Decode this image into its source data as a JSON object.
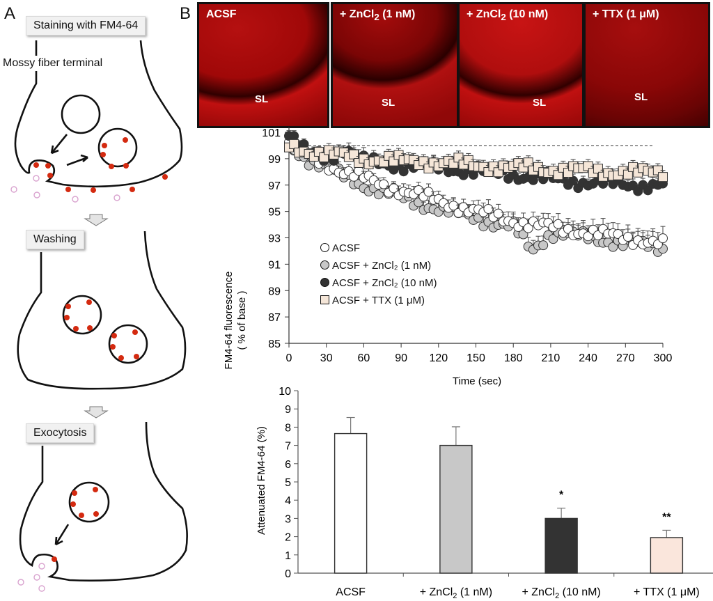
{
  "panel_a": {
    "letter": "A",
    "stages": [
      {
        "label": "Staining with FM4-64"
      },
      {
        "label": "Washing"
      },
      {
        "label": "Exocytosis"
      }
    ],
    "terminal_label": "Mossy fiber terminal",
    "colors": {
      "dye": "#d42a10",
      "released_dye": "#d9a3cf"
    }
  },
  "panel_b": {
    "letter": "B",
    "micrographs": [
      {
        "title": "+ ACSF",
        "title_main": "ACSF",
        "title_sub": "",
        "title_tail": "",
        "region_label": "SL"
      },
      {
        "title_main": "+ ZnCl",
        "title_sub": "2",
        "title_tail": " (1 nM)",
        "region_label": "SL"
      },
      {
        "title_main": "+ ZnCl",
        "title_sub": "2",
        "title_tail": " (10 nM)",
        "region_label": "SL"
      },
      {
        "title_main": "+ TTX (1 μM)",
        "title_sub": "",
        "title_tail": "",
        "region_label": "SL"
      }
    ]
  },
  "chart_data": [
    {
      "type": "scatter",
      "title": "",
      "xlabel": "Time (sec)",
      "ylabel": "FM4-64 fluorescence",
      "ylabel2": "( % of base )",
      "xlim": [
        0,
        300
      ],
      "ylim": [
        85,
        101
      ],
      "xticks": [
        0,
        30,
        60,
        90,
        120,
        150,
        180,
        210,
        240,
        270,
        300
      ],
      "yticks": [
        85,
        87,
        89,
        91,
        93,
        95,
        97,
        99,
        101
      ],
      "baseline": 100,
      "legend_position": "lower-left",
      "series": [
        {
          "name": "ACSF",
          "marker": "circle",
          "color": "#ffffff",
          "x": [
            0,
            15,
            30,
            45,
            60,
            75,
            90,
            105,
            120,
            135,
            150,
            165,
            180,
            195,
            210,
            225,
            240,
            255,
            270,
            285,
            300
          ],
          "values": [
            100,
            99.2,
            98.6,
            98.0,
            97.5,
            97.0,
            96.6,
            96.2,
            95.8,
            95.4,
            95.0,
            94.6,
            94.3,
            94.0,
            93.8,
            93.6,
            93.4,
            93.2,
            93.0,
            92.8,
            92.5
          ],
          "error": [
            0.3,
            0.4,
            0.5,
            0.5,
            0.5,
            0.5,
            0.6,
            0.6,
            0.6,
            0.6,
            0.7,
            0.7,
            0.7,
            0.7,
            0.8,
            0.8,
            0.8,
            0.8,
            0.9,
            0.9,
            0.9
          ]
        },
        {
          "name": "ACSF + ZnCl₂ (1 nM)",
          "marker": "circle",
          "color": "#c8c8c8",
          "x": [
            0,
            15,
            30,
            45,
            60,
            75,
            90,
            105,
            120,
            135,
            150,
            165,
            180,
            195,
            210,
            225,
            240,
            255,
            270,
            285,
            300
          ],
          "values": [
            100,
            99.0,
            98.3,
            97.6,
            97.0,
            96.5,
            96.0,
            95.6,
            95.2,
            94.8,
            94.5,
            94.1,
            93.8,
            92.0,
            93.4,
            93.2,
            93.0,
            92.8,
            92.6,
            92.4,
            92.2
          ],
          "error": [
            0.3,
            0.4,
            0.5,
            0.5,
            0.5,
            0.6,
            0.6,
            0.6,
            0.6,
            0.7,
            0.7,
            0.7,
            0.7,
            0.7,
            0.8,
            0.8,
            0.8,
            0.8,
            0.8,
            0.9,
            0.9
          ]
        },
        {
          "name": "ACSF + ZnCl₂ (10 nM)",
          "marker": "circle",
          "color": "#333333",
          "x": [
            0,
            15,
            30,
            45,
            60,
            75,
            90,
            105,
            120,
            135,
            150,
            165,
            180,
            195,
            210,
            225,
            240,
            255,
            270,
            285,
            300
          ],
          "values": [
            100.9,
            99.3,
            99.0,
            99.8,
            98.8,
            98.6,
            98.5,
            98.4,
            98.3,
            98.2,
            98.0,
            97.9,
            97.8,
            97.6,
            97.4,
            97.3,
            97.2,
            97.1,
            97.0,
            97.0,
            97.0
          ],
          "error": [
            0.4,
            0.4,
            0.5,
            0.6,
            0.5,
            0.5,
            0.5,
            0.5,
            0.5,
            0.5,
            0.5,
            0.5,
            0.5,
            0.5,
            0.5,
            0.5,
            0.5,
            0.5,
            0.5,
            0.5,
            0.5
          ]
        },
        {
          "name": "ACSF + TTX (1 μM)",
          "marker": "square",
          "color": "#f5e6d8",
          "x": [
            0,
            15,
            30,
            45,
            60,
            75,
            90,
            105,
            120,
            135,
            150,
            165,
            180,
            195,
            210,
            225,
            240,
            255,
            270,
            285,
            300
          ],
          "values": [
            100,
            99.6,
            99.3,
            99.2,
            99.0,
            98.9,
            98.8,
            98.8,
            98.7,
            98.6,
            98.5,
            98.4,
            98.3,
            98.3,
            98.2,
            98.1,
            98.1,
            98.0,
            98.0,
            97.9,
            98.0
          ],
          "error": [
            0.3,
            0.4,
            0.5,
            0.5,
            0.5,
            0.5,
            0.5,
            0.5,
            0.5,
            0.5,
            0.5,
            0.5,
            0.5,
            0.5,
            0.5,
            0.5,
            0.5,
            0.5,
            0.5,
            0.5,
            0.6
          ]
        }
      ]
    },
    {
      "type": "bar",
      "title": "",
      "xlabel": "",
      "ylabel": "Attenuated FM4-64 (%)",
      "ylim": [
        0,
        10
      ],
      "yticks": [
        0,
        1,
        2,
        3,
        4,
        5,
        6,
        7,
        8,
        9,
        10
      ],
      "categories": [
        {
          "main": "ACSF",
          "sub": "",
          "tail": ""
        },
        {
          "main": "+ ZnCl",
          "sub": "2",
          "tail": " (1 nM)"
        },
        {
          "main": "+ ZnCl",
          "sub": "2",
          "tail": " (10 nM)"
        },
        {
          "main": "+ TTX (1 μM)",
          "sub": "",
          "tail": ""
        }
      ],
      "values": [
        7.65,
        7.0,
        3.0,
        1.95
      ],
      "errors": [
        0.88,
        1.02,
        0.56,
        0.4
      ],
      "significance": [
        "",
        "",
        "*",
        "**"
      ],
      "colors": [
        "#ffffff",
        "#c8c8c8",
        "#333333",
        "#fae6dc"
      ]
    }
  ]
}
